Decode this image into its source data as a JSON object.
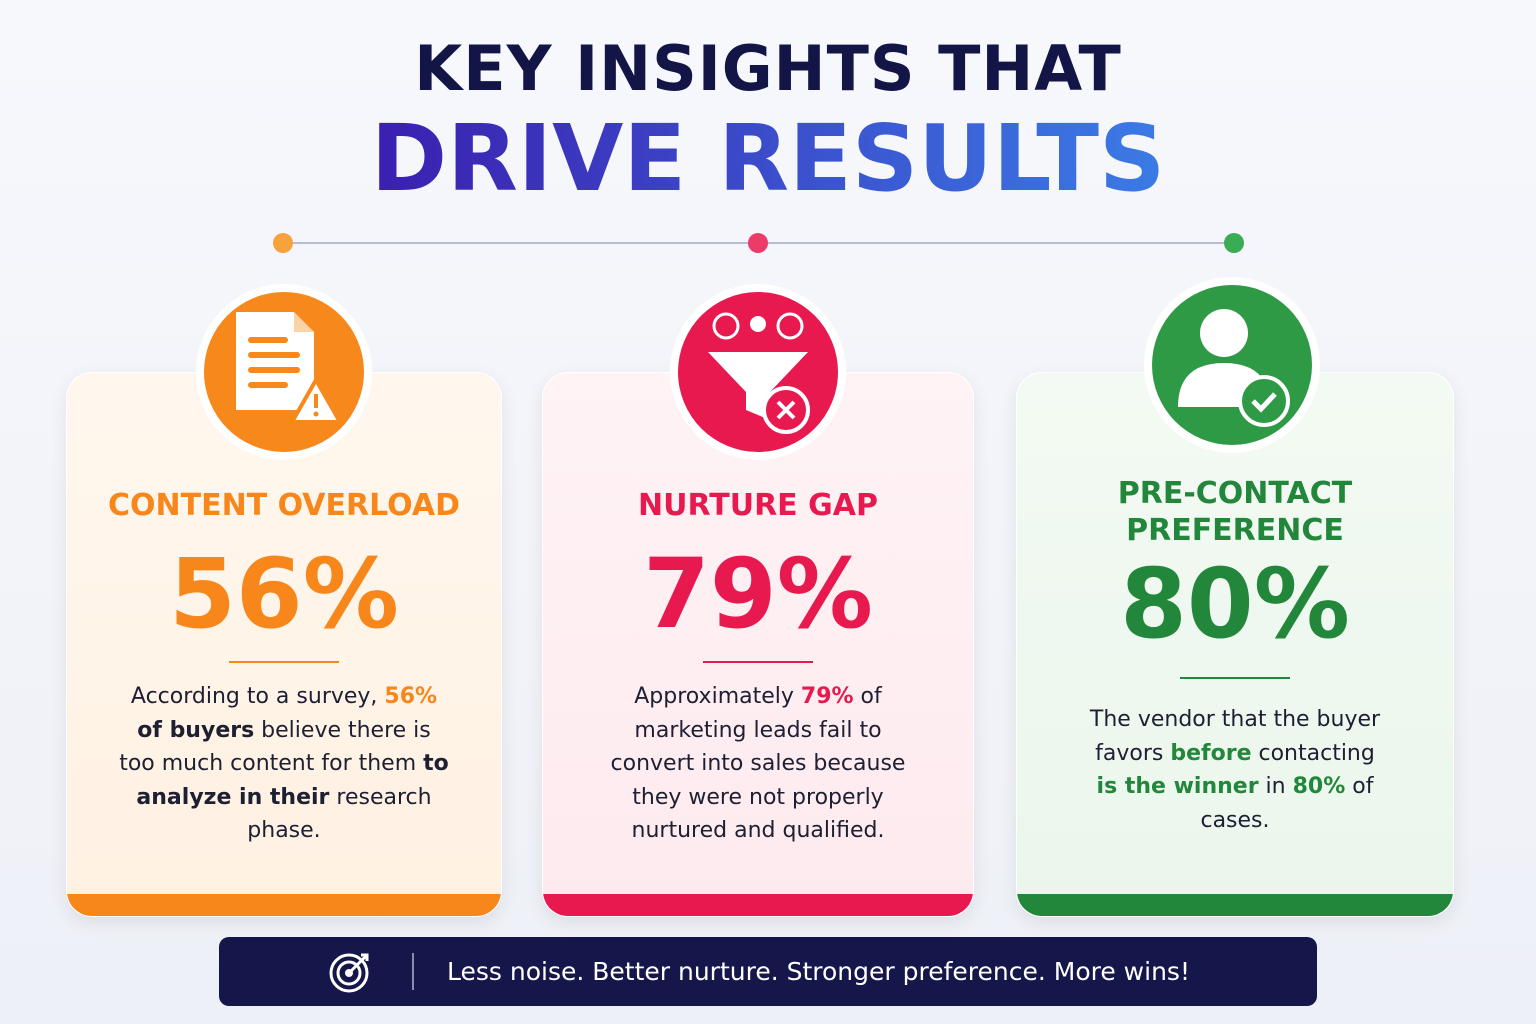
{
  "header": {
    "title_line1": "KEY INSIGHTS THAT",
    "title_line2": "DRIVE RESULTS"
  },
  "cards": [
    {
      "title": [
        "CONTENT OVERLOAD"
      ],
      "stat": "56%",
      "color": "#f7861b",
      "description": [
        {
          "text": "According to a survey, ",
          "style": "plain"
        },
        {
          "text": "56%",
          "style": "accent"
        },
        {
          "text": " of buyers",
          "style": "strong"
        },
        {
          "text": " believe there is too much content for them ",
          "style": "plain"
        },
        {
          "text": "to analyze in their",
          "style": "strong"
        },
        {
          "text": " research phase.",
          "style": "plain"
        }
      ]
    },
    {
      "title": [
        "NURTURE GAP"
      ],
      "stat": "79%",
      "color": "#e8194f",
      "description": [
        {
          "text": "Approximately ",
          "style": "plain"
        },
        {
          "text": "79%",
          "style": "accent"
        },
        {
          "text": " of marketing leads fail to convert into sales because they were not properly nurtured and qualified.",
          "style": "plain"
        }
      ]
    },
    {
      "title": [
        "PRE-CONTACT",
        "PREFERENCE"
      ],
      "stat": "80%",
      "color": "#23873b",
      "description": [
        {
          "text": "The vendor that the buyer favors ",
          "style": "plain"
        },
        {
          "text": "before",
          "style": "accent"
        },
        {
          "text": " contacting ",
          "style": "plain"
        },
        {
          "text": "is the winner",
          "style": "accent"
        },
        {
          "text": " in ",
          "style": "plain"
        },
        {
          "text": "80%",
          "style": "accent"
        },
        {
          "text": " of cases.",
          "style": "plain"
        }
      ]
    }
  ],
  "footer": {
    "text": "Less noise. Better nurture. Stronger preference. More wins!"
  }
}
